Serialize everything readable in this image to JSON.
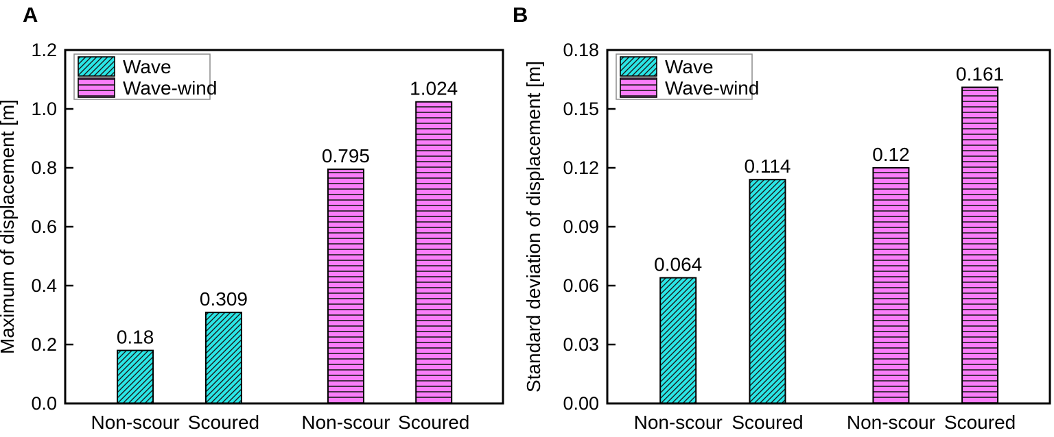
{
  "figure": {
    "background": "#ffffff"
  },
  "colors": {
    "wave": "#2AE6E6",
    "wave_wind": "#FA7DFA",
    "axis": "#000000",
    "hatch_line": "#1A1A1A",
    "legend_border": "#8C8C8C",
    "text": "#000000"
  },
  "legend": {
    "items": [
      {
        "label": "Wave",
        "hatch": "diagonal",
        "color_key": "wave"
      },
      {
        "label": "Wave-wind",
        "hatch": "horizontal",
        "color_key": "wave_wind"
      }
    ],
    "position": "top-left"
  },
  "chart_data": [
    {
      "type": "bar",
      "panel_label": "A",
      "title": "",
      "xlabel": "",
      "ylabel": "Maximum of displacement [m]",
      "ylim": [
        0,
        1.2
      ],
      "ytick_values": [
        0.0,
        0.2,
        0.4,
        0.6,
        0.8,
        1.0,
        1.2
      ],
      "ytick_labels": [
        "0.0",
        "0.2",
        "0.4",
        "0.6",
        "0.8",
        "1.0",
        "1.2"
      ],
      "categories": [
        "Non-scour",
        "Scoured",
        "Non-scour",
        "Scoured"
      ],
      "grid": false,
      "legend_position": "top-left",
      "bars": [
        {
          "category": "Non-scour",
          "series": "Wave",
          "value": 0.18,
          "label": "0.18"
        },
        {
          "category": "Scoured",
          "series": "Wave",
          "value": 0.309,
          "label": "0.309"
        },
        {
          "category": "Non-scour",
          "series": "Wave-wind",
          "value": 0.795,
          "label": "0.795"
        },
        {
          "category": "Scoured",
          "series": "Wave-wind",
          "value": 1.024,
          "label": "1.024"
        }
      ]
    },
    {
      "type": "bar",
      "panel_label": "B",
      "title": "",
      "xlabel": "",
      "ylabel": "Standard deviation of displacement [m]",
      "ylim": [
        0,
        0.18
      ],
      "ytick_values": [
        0.0,
        0.03,
        0.06,
        0.09,
        0.12,
        0.15,
        0.18
      ],
      "ytick_labels": [
        "0.00",
        "0.03",
        "0.06",
        "0.09",
        "0.12",
        "0.15",
        "0.18"
      ],
      "categories": [
        "Non-scour",
        "Scoured",
        "Non-scour",
        "Scoured"
      ],
      "grid": false,
      "legend_position": "top-left",
      "bars": [
        {
          "category": "Non-scour",
          "series": "Wave",
          "value": 0.064,
          "label": "0.064"
        },
        {
          "category": "Scoured",
          "series": "Wave",
          "value": 0.114,
          "label": "0.114"
        },
        {
          "category": "Non-scour",
          "series": "Wave-wind",
          "value": 0.12,
          "label": "0.12"
        },
        {
          "category": "Scoured",
          "series": "Wave-wind",
          "value": 0.161,
          "label": "0.161"
        }
      ]
    }
  ]
}
